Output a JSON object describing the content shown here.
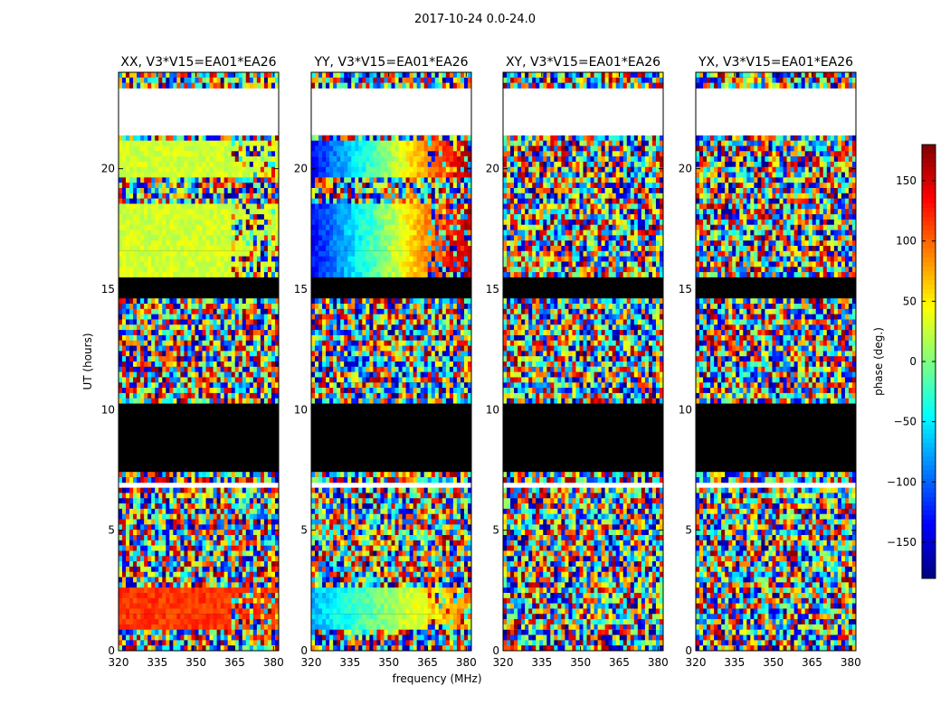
{
  "figure": {
    "suptitle": "2017-10-24 0.0-24.0"
  },
  "chart_data": {
    "type": "heatmap",
    "title": "2017-10-24 0.0-24.0",
    "xlabel": "frequency (MHz)",
    "ylabel": "UT (hours)",
    "xlim": [
      320,
      382
    ],
    "ylim": [
      0,
      24
    ],
    "xticks": [
      320,
      335,
      350,
      365,
      380
    ],
    "yticks": [
      0,
      5,
      10,
      15,
      20
    ],
    "panels": [
      {
        "name": "XX, V3*V15=EA01*EA26",
        "id": "xx"
      },
      {
        "name": "YY, V3*V15=EA01*EA26",
        "id": "yy"
      },
      {
        "name": "XY, V3*V15=EA01*EA26",
        "id": "xy"
      },
      {
        "name": "YX, V3*V15=EA01*EA26",
        "id": "yx"
      }
    ],
    "colorbar": {
      "label": "phase (deg.)",
      "range": [
        -180,
        180
      ],
      "ticks": [
        -150,
        -100,
        -50,
        0,
        50,
        100,
        150
      ],
      "ticklabels": [
        "−150",
        "−100",
        "−50",
        "0",
        "50",
        "100",
        "150"
      ],
      "colormap": "jet"
    },
    "blank_bands_hours": [
      [
        21.3,
        23.3
      ],
      [
        6.7,
        6.9
      ]
    ],
    "flagged_bands_hours": [
      [
        7.5,
        10.2
      ],
      [
        14.6,
        15.5
      ]
    ],
    "time_ranges_hours": {
      "coherent_xx": [
        [
          0.8,
          2.7
        ],
        [
          15.6,
          18.5
        ],
        [
          19.6,
          21.2
        ]
      ],
      "noise": [
        [
          0,
          0.8
        ],
        [
          2.8,
          7.3
        ],
        [
          10.3,
          14.5
        ],
        [
          23.3,
          24
        ]
      ]
    }
  }
}
